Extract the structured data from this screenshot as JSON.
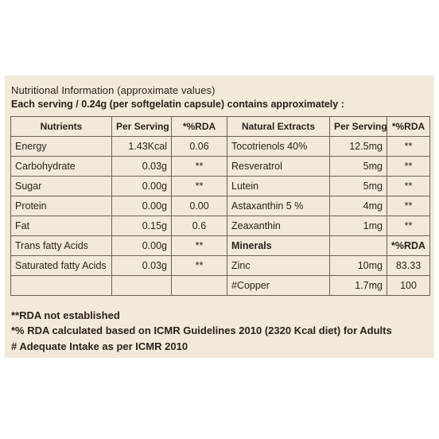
{
  "header": {
    "title": "Nutritional Information (approximate values)",
    "serving": "Each serving / 0.24g (per softgelatin capsule) contains approximately :"
  },
  "table": {
    "columns": [
      "Nutrients",
      "Per Serving",
      "*%RDA",
      "Natural Extracts",
      "Per Serving",
      "*%RDA"
    ],
    "rows": [
      [
        "Energy",
        "1.43Kcal",
        "0.06",
        "Tocotrienols 40%",
        "12.5mg",
        "**"
      ],
      [
        "Carbohydrate",
        "0.03g",
        "**",
        "Resveratrol",
        "5mg",
        "**"
      ],
      [
        "Sugar",
        "0.00g",
        "**",
        "Lutein",
        "5mg",
        "**"
      ],
      [
        "Protein",
        "0.00g",
        "0.00",
        "Astaxanthin 5 %",
        "4mg",
        "**"
      ],
      [
        "Fat",
        "0.15g",
        "0.6",
        "Zeaxanthin",
        "1mg",
        "**"
      ],
      [
        "Trans fatty Acids",
        "0.00g",
        "**",
        "Minerals",
        "",
        "*%RDA"
      ],
      [
        "Saturated fatty Acids",
        "0.03g",
        "**",
        "Zinc",
        "10mg",
        "83.33"
      ],
      [
        "",
        "",
        "",
        "#Copper",
        "1.7mg",
        "100"
      ]
    ]
  },
  "footnotes": [
    "**RDA not established",
    "*% RDA calculated based on ICMR Guidelines 2010 (2320 Kcal diet) for Adults",
    "# Adequate Intake as per ICMR 2010"
  ]
}
